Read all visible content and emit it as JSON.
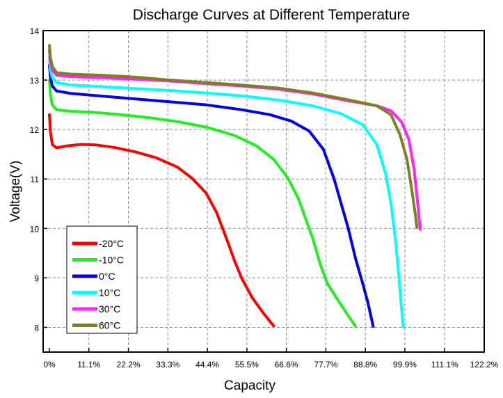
{
  "chart_data": {
    "type": "line",
    "title": "Discharge Curves at Different Temperature",
    "xlabel": "Capacity",
    "ylabel": "Voltage(V)",
    "xlim": [
      0,
      122.2
    ],
    "ylim": [
      7.5,
      14
    ],
    "x_tick_labels": [
      "0%",
      "11.1%",
      "22.2%",
      "33.3%",
      "44.4%",
      "55.5%",
      "66.6%",
      "77.7%",
      "88.8%",
      "99.9%",
      "111.1%",
      "122.2%"
    ],
    "y_tick_labels": [
      "8",
      "9",
      "10",
      "11",
      "12",
      "13",
      "14"
    ],
    "y_ticks": [
      8,
      9,
      10,
      11,
      12,
      13,
      14
    ],
    "grid": true,
    "legend_position": "bottom-left",
    "series": [
      {
        "name": "-20°C",
        "color": "#ff0000",
        "points": [
          [
            0,
            12.3
          ],
          [
            0.3,
            11.95
          ],
          [
            0.8,
            11.7
          ],
          [
            2,
            11.63
          ],
          [
            5,
            11.67
          ],
          [
            9,
            11.7
          ],
          [
            13,
            11.69
          ],
          [
            18,
            11.64
          ],
          [
            24,
            11.55
          ],
          [
            30,
            11.43
          ],
          [
            36,
            11.24
          ],
          [
            40,
            11.02
          ],
          [
            44,
            10.72
          ],
          [
            47,
            10.32
          ],
          [
            50,
            9.75
          ],
          [
            52,
            9.35
          ],
          [
            54,
            9.0
          ],
          [
            57,
            8.6
          ],
          [
            60,
            8.3
          ],
          [
            63,
            8.03
          ]
        ]
      },
      {
        "name": "-10°C",
        "color": "#22ee22",
        "points": [
          [
            0,
            13.0
          ],
          [
            0.3,
            12.7
          ],
          [
            0.8,
            12.5
          ],
          [
            2,
            12.4
          ],
          [
            6,
            12.37
          ],
          [
            12,
            12.35
          ],
          [
            20,
            12.3
          ],
          [
            28,
            12.24
          ],
          [
            36,
            12.16
          ],
          [
            44,
            12.05
          ],
          [
            52,
            11.88
          ],
          [
            58,
            11.68
          ],
          [
            63,
            11.4
          ],
          [
            67,
            11.02
          ],
          [
            70,
            10.6
          ],
          [
            72,
            10.2
          ],
          [
            74,
            9.8
          ],
          [
            76,
            9.3
          ],
          [
            78,
            8.9
          ],
          [
            82,
            8.45
          ],
          [
            86,
            8.02
          ]
        ]
      },
      {
        "name": "0°C",
        "color": "#0000ee",
        "points": [
          [
            0,
            13.3
          ],
          [
            0.3,
            13.05
          ],
          [
            0.8,
            12.88
          ],
          [
            2,
            12.78
          ],
          [
            6,
            12.73
          ],
          [
            14,
            12.68
          ],
          [
            24,
            12.62
          ],
          [
            34,
            12.56
          ],
          [
            44,
            12.5
          ],
          [
            54,
            12.4
          ],
          [
            62,
            12.3
          ],
          [
            68,
            12.17
          ],
          [
            73,
            11.97
          ],
          [
            77,
            11.6
          ],
          [
            80,
            11.0
          ],
          [
            82,
            10.5
          ],
          [
            84,
            10.0
          ],
          [
            86,
            9.4
          ],
          [
            88,
            8.9
          ],
          [
            89.5,
            8.5
          ],
          [
            91,
            8.02
          ]
        ]
      },
      {
        "name": "10°C",
        "color": "#00ffff",
        "points": [
          [
            0,
            13.45
          ],
          [
            0.3,
            13.2
          ],
          [
            0.8,
            13.05
          ],
          [
            2,
            12.95
          ],
          [
            6,
            12.9
          ],
          [
            14,
            12.87
          ],
          [
            24,
            12.83
          ],
          [
            34,
            12.79
          ],
          [
            44,
            12.74
          ],
          [
            54,
            12.68
          ],
          [
            64,
            12.6
          ],
          [
            74,
            12.48
          ],
          [
            82,
            12.32
          ],
          [
            88,
            12.1
          ],
          [
            92,
            11.7
          ],
          [
            94.5,
            11.1
          ],
          [
            96,
            10.5
          ],
          [
            97.2,
            9.8
          ],
          [
            98,
            9.2
          ],
          [
            98.7,
            8.6
          ],
          [
            99.4,
            8.02
          ]
        ]
      },
      {
        "name": "30°C",
        "color": "#ff22ff",
        "points": [
          [
            0,
            13.6
          ],
          [
            0.3,
            13.35
          ],
          [
            0.8,
            13.2
          ],
          [
            2,
            13.1
          ],
          [
            6,
            13.07
          ],
          [
            14,
            13.05
          ],
          [
            24,
            13.02
          ],
          [
            34,
            12.98
          ],
          [
            44,
            12.93
          ],
          [
            54,
            12.88
          ],
          [
            64,
            12.82
          ],
          [
            74,
            12.72
          ],
          [
            84,
            12.58
          ],
          [
            92,
            12.48
          ],
          [
            96,
            12.38
          ],
          [
            99,
            12.15
          ],
          [
            101,
            11.8
          ],
          [
            102.5,
            11.2
          ],
          [
            103.5,
            10.5
          ],
          [
            104.2,
            9.98
          ]
        ]
      },
      {
        "name": "60°C",
        "color": "#7f7f1f",
        "points": [
          [
            0,
            13.7
          ],
          [
            0.3,
            13.45
          ],
          [
            0.8,
            13.28
          ],
          [
            2,
            13.15
          ],
          [
            6,
            13.12
          ],
          [
            14,
            13.1
          ],
          [
            24,
            13.06
          ],
          [
            34,
            13.0
          ],
          [
            44,
            12.95
          ],
          [
            54,
            12.9
          ],
          [
            64,
            12.84
          ],
          [
            74,
            12.74
          ],
          [
            84,
            12.6
          ],
          [
            92,
            12.48
          ],
          [
            96,
            12.3
          ],
          [
            98.5,
            11.9
          ],
          [
            100.5,
            11.4
          ],
          [
            101.8,
            10.8
          ],
          [
            102.8,
            10.3
          ],
          [
            103.3,
            10.02
          ]
        ]
      }
    ]
  }
}
